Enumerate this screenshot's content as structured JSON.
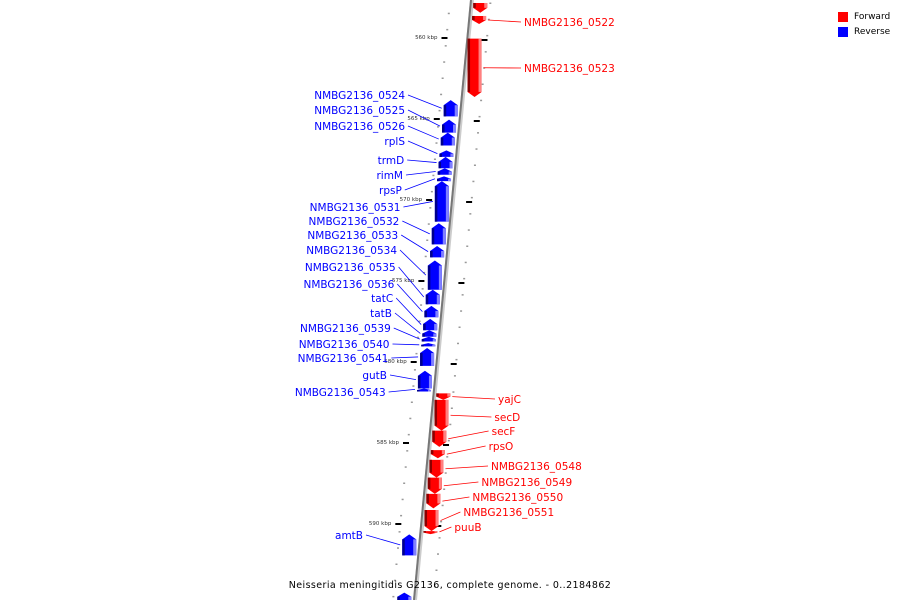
{
  "legend": {
    "forward": {
      "label": "Forward",
      "color": "#ff0000"
    },
    "reverse": {
      "label": "Reverse",
      "color": "#0000ff"
    }
  },
  "caption": "Neisseria meningitidis G2136, complete genome. - 0..2184862",
  "scale_ticks": [
    {
      "kbp": 560,
      "label": "560 kbp"
    },
    {
      "kbp": 565,
      "label": "565 kbp"
    },
    {
      "kbp": 570,
      "label": "570 kbp"
    },
    {
      "kbp": 575,
      "label": "575 kbp"
    },
    {
      "kbp": 580,
      "label": "580 kbp"
    },
    {
      "kbp": 585,
      "label": "585 kbp"
    },
    {
      "kbp": 590,
      "label": "590 kbp"
    }
  ],
  "genes": [
    {
      "label": "",
      "strand": "+",
      "start": 557.9,
      "end": 558.5
    },
    {
      "label": "NMBG2136_0522",
      "strand": "+",
      "start": 558.7,
      "end": 559.2
    },
    {
      "label": "NMBG2136_0523",
      "strand": "+",
      "start": 560.1,
      "end": 563.7
    },
    {
      "label": "NMBG2136_0524",
      "strand": "-",
      "start": 563.9,
      "end": 564.9
    },
    {
      "label": "NMBG2136_0525",
      "strand": "-",
      "start": 565.1,
      "end": 565.9
    },
    {
      "label": "NMBG2136_0526",
      "strand": "-",
      "start": 565.9,
      "end": 566.7
    },
    {
      "label": "rplS",
      "strand": "-",
      "start": 567.0,
      "end": 567.4
    },
    {
      "label": "trmD",
      "strand": "-",
      "start": 567.4,
      "end": 568.1
    },
    {
      "label": "rimM",
      "strand": "-",
      "start": 568.1,
      "end": 568.5
    },
    {
      "label": "rpsP",
      "strand": "-",
      "start": 568.6,
      "end": 568.9
    },
    {
      "label": "NMBG2136_0531",
      "strand": "-",
      "start": 568.9,
      "end": 571.4
    },
    {
      "label": "NMBG2136_0532",
      "strand": "-",
      "start": 571.5,
      "end": 572.8
    },
    {
      "label": "NMBG2136_0533",
      "strand": "-",
      "start": 572.9,
      "end": 573.6
    },
    {
      "label": "NMBG2136_0534",
      "strand": "-",
      "start": 573.8,
      "end": 575.6
    },
    {
      "label": "NMBG2136_0535",
      "strand": "-",
      "start": 575.6,
      "end": 576.5
    },
    {
      "label": "NMBG2136_0536",
      "strand": "-",
      "start": 576.6,
      "end": 577.3
    },
    {
      "label": "tatC",
      "strand": "-",
      "start": 577.4,
      "end": 578.1
    },
    {
      "label": "tatB",
      "strand": "-",
      "start": 578.1,
      "end": 578.5
    },
    {
      "label": "NMBG2136_0539",
      "strand": "-",
      "start": 578.5,
      "end": 578.8
    },
    {
      "label": "NMBG2136_0540",
      "strand": "-",
      "start": 578.9,
      "end": 579.1
    },
    {
      "label": "NMBG2136_0541",
      "strand": "-",
      "start": 579.2,
      "end": 580.3
    },
    {
      "label": "gutB",
      "strand": "-",
      "start": 580.6,
      "end": 581.7
    },
    {
      "label": "NMBG2136_0543",
      "strand": "-",
      "start": 581.7,
      "end": 581.8
    },
    {
      "label": "yajC",
      "strand": "+",
      "start": 582.0,
      "end": 582.4
    },
    {
      "label": "secD",
      "strand": "+",
      "start": 582.4,
      "end": 584.3
    },
    {
      "label": "secF",
      "strand": "+",
      "start": 584.3,
      "end": 585.3
    },
    {
      "label": "rpsO",
      "strand": "+",
      "start": 585.5,
      "end": 586.0
    },
    {
      "label": "NMBG2136_0548",
      "strand": "+",
      "start": 586.1,
      "end": 587.2
    },
    {
      "label": "NMBG2136_0549",
      "strand": "+",
      "start": 587.2,
      "end": 588.2
    },
    {
      "label": "NMBG2136_0550",
      "strand": "+",
      "start": 588.2,
      "end": 589.1
    },
    {
      "label": "NMBG2136_0551",
      "strand": "+",
      "start": 589.2,
      "end": 590.5
    },
    {
      "label": "puuB",
      "strand": "+",
      "start": 590.5,
      "end": 590.6
    },
    {
      "label": "amtB",
      "strand": "-",
      "start": 590.7,
      "end": 592.0
    },
    {
      "label": "",
      "strand": "-",
      "start": 594.3,
      "end": 594.8
    }
  ]
}
